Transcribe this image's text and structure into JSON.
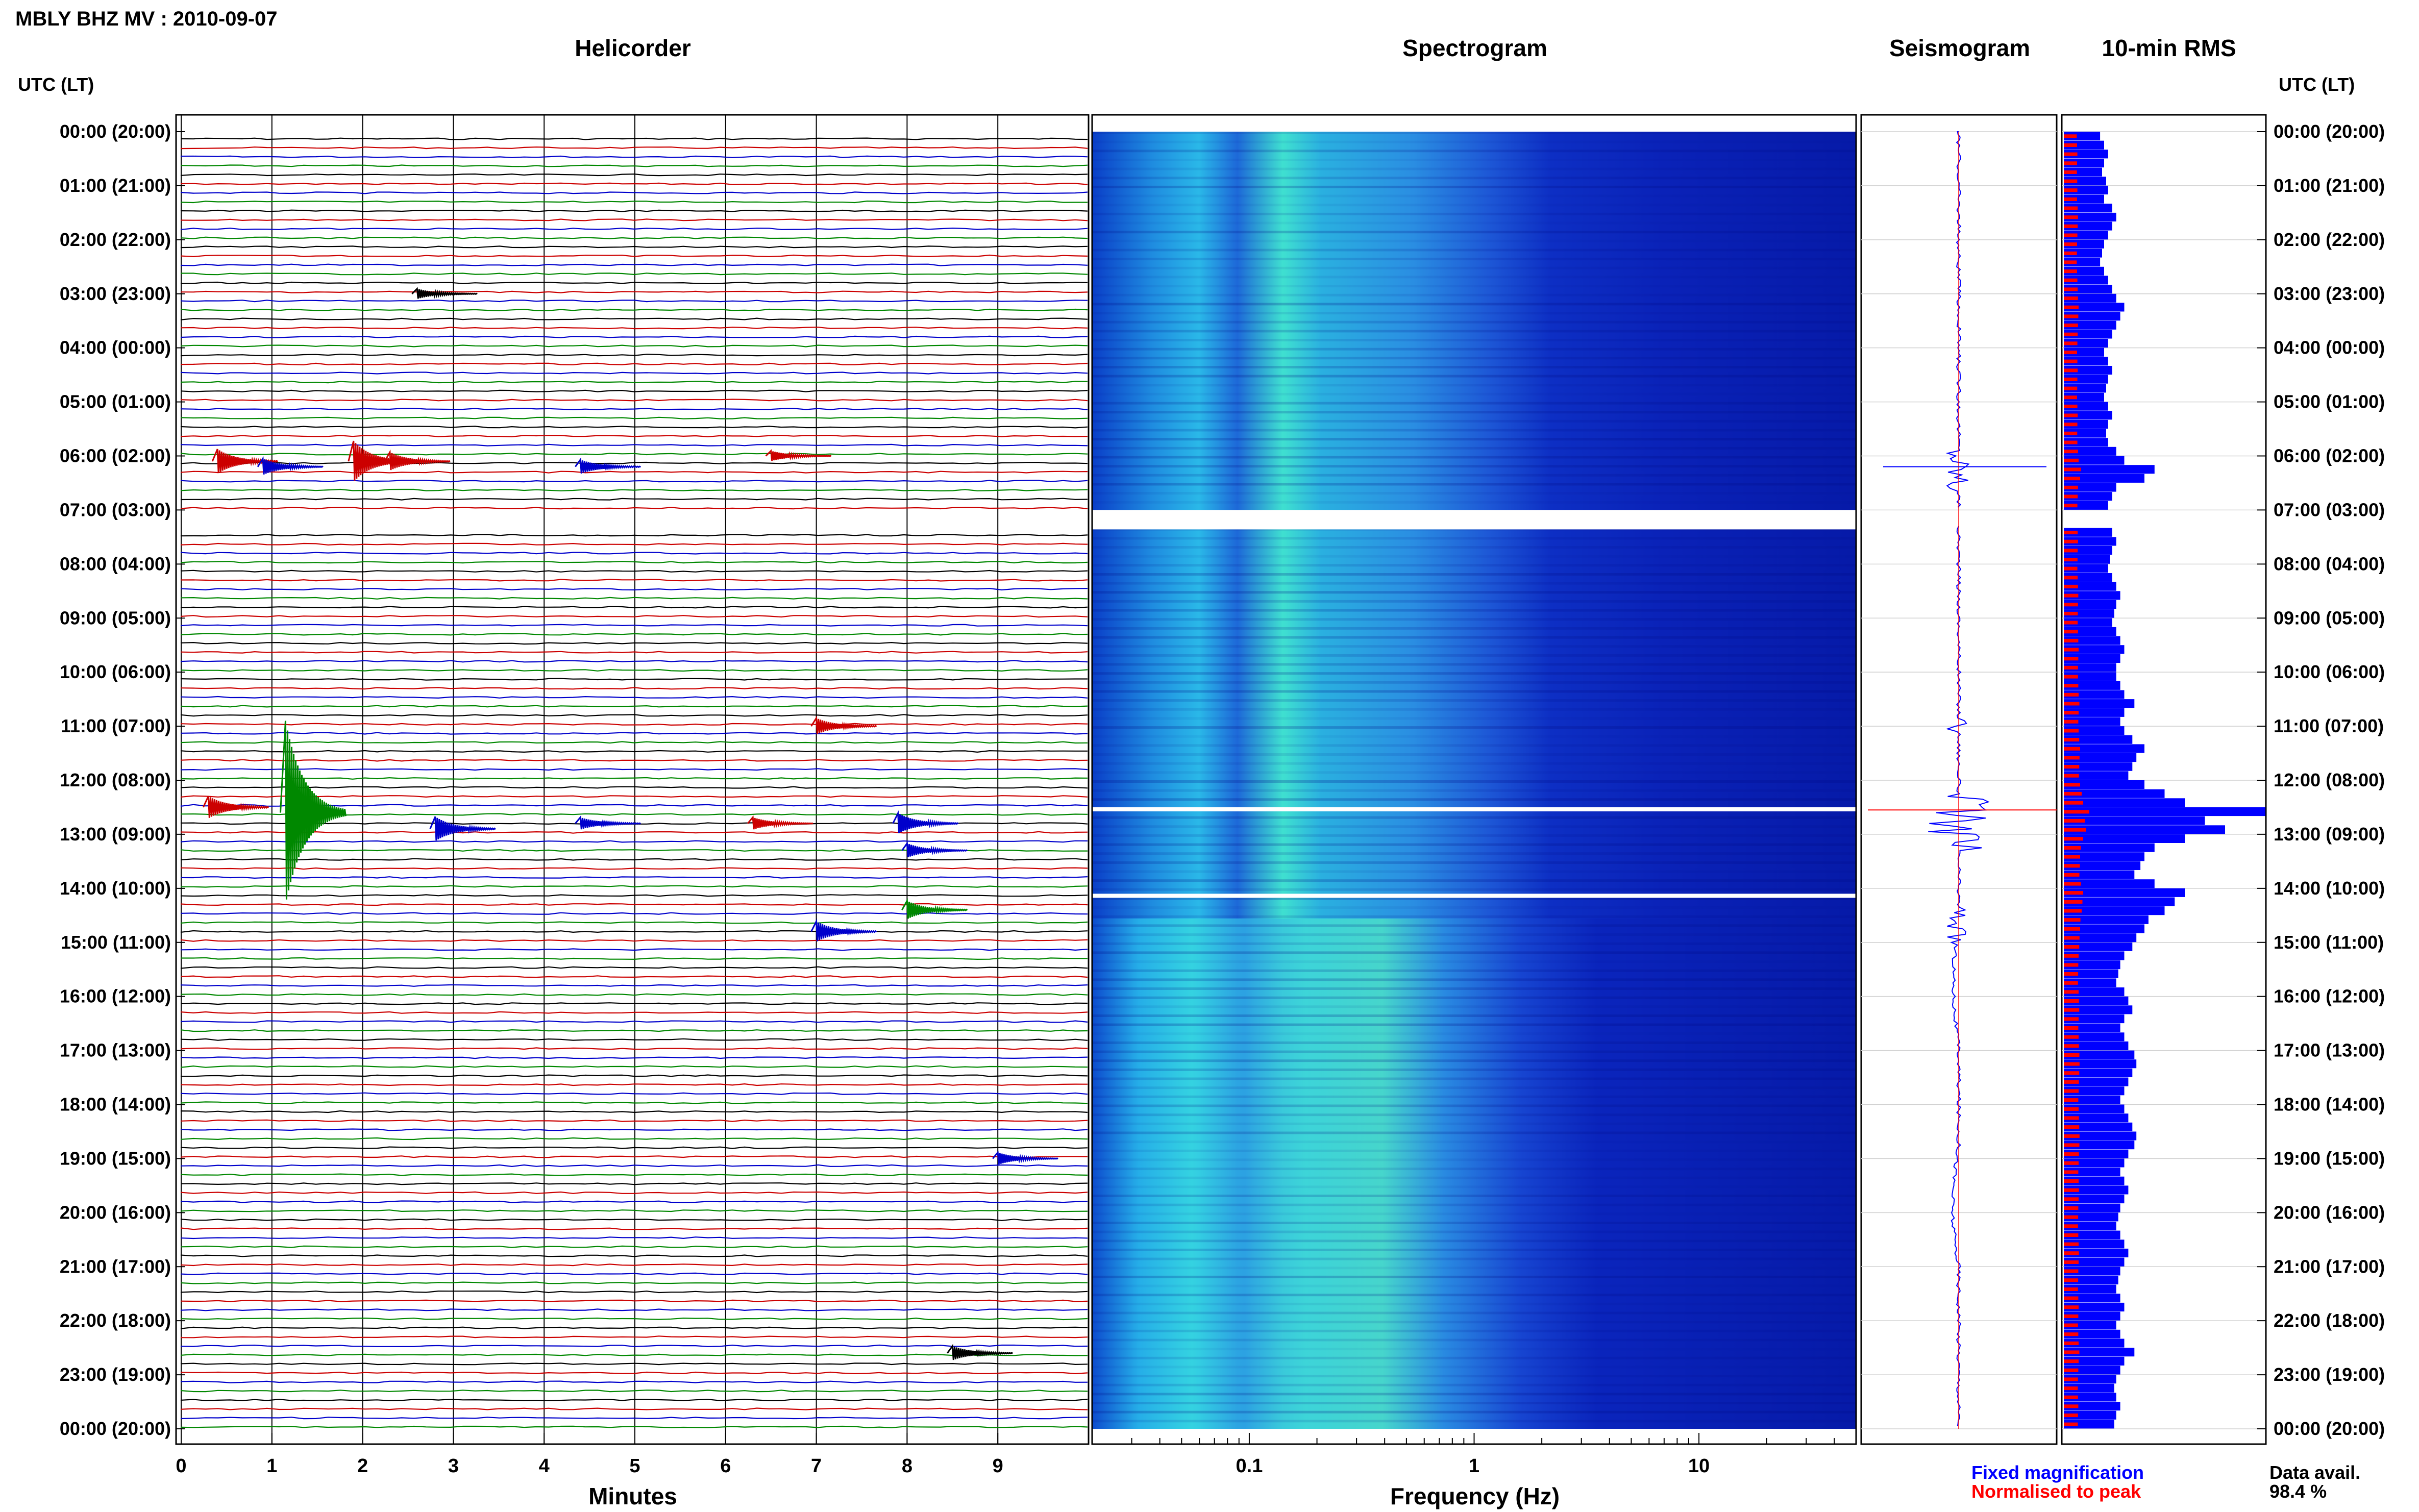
{
  "header": {
    "title": "MBLY BHZ MV : 2010-09-07"
  },
  "panels": {
    "helicorder": "Helicorder",
    "spectrogram": "Spectrogram",
    "seismogram": "Seismogram",
    "rms": "10-min RMS"
  },
  "axes": {
    "left_header": "UTC (LT)",
    "right_header": "UTC (LT)",
    "minutes_label": "Minutes",
    "frequency_label": "Frequency (Hz)"
  },
  "legend": {
    "fixed": "Fixed magnification",
    "normalised": "Normalised to peak",
    "fixed_color": "#0000ff",
    "normalised_color": "#ff0000",
    "avail_label": "Data avail.",
    "avail_value": "98.4 %"
  },
  "chart_data": [
    {
      "type": "line",
      "name": "helicorder",
      "title": "Helicorder",
      "xlabel": "Minutes",
      "ylabel": "UTC (LT)",
      "xlim": [
        0,
        10
      ],
      "x_ticks": [
        "0",
        "1",
        "2",
        "3",
        "4",
        "5",
        "6",
        "7",
        "8",
        "9"
      ],
      "y_ticks_utc": [
        "00:00 (20:00)",
        "01:00 (21:00)",
        "02:00 (22:00)",
        "03:00 (23:00)",
        "04:00 (00:00)",
        "05:00 (01:00)",
        "06:00 (02:00)",
        "07:00 (03:00)",
        "08:00 (04:00)",
        "09:00 (05:00)",
        "10:00 (06:00)",
        "11:00 (07:00)",
        "12:00 (08:00)",
        "13:00 (09:00)",
        "14:00 (10:00)",
        "15:00 (11:00)",
        "16:00 (12:00)",
        "17:00 (13:00)",
        "18:00 (14:00)",
        "19:00 (15:00)",
        "20:00 (16:00)",
        "21:00 (17:00)",
        "22:00 (18:00)",
        "23:00 (19:00)",
        "00:00 (20:00)"
      ],
      "trace_colors": [
        "#000000",
        "#cc0000",
        "#0000cc",
        "#008800"
      ],
      "traces_per_hour": 6,
      "grid": true
    },
    {
      "type": "heatmap",
      "name": "spectrogram",
      "title": "Spectrogram",
      "xlabel": "Frequency (Hz)",
      "x_scale": "log",
      "xlim": [
        0.02,
        50
      ],
      "x_ticks": [
        "0.1",
        "1",
        "10"
      ],
      "gaps_hours": [
        7.0,
        12.5,
        14.1
      ]
    },
    {
      "type": "line",
      "name": "seismogram",
      "title": "Seismogram",
      "series": [
        {
          "name": "Fixed magnification",
          "color": "#0000ff"
        },
        {
          "name": "Normalised to peak",
          "color": "#ff0000"
        }
      ]
    },
    {
      "type": "bar",
      "name": "rms",
      "title": "10-min RMS",
      "note": "relative RMS per 10-minute window (0-1)",
      "values": [
        0.18,
        0.2,
        0.22,
        0.2,
        0.19,
        0.21,
        0.22,
        0.2,
        0.24,
        0.26,
        0.24,
        0.22,
        0.2,
        0.19,
        0.18,
        0.2,
        0.22,
        0.24,
        0.26,
        0.3,
        0.28,
        0.26,
        0.24,
        0.22,
        0.2,
        0.22,
        0.24,
        0.22,
        0.21,
        0.2,
        0.22,
        0.24,
        0.22,
        0.21,
        0.22,
        0.26,
        0.3,
        0.45,
        0.4,
        0.26,
        0.24,
        0.22,
        0.0,
        0.0,
        0.24,
        0.26,
        0.24,
        0.23,
        0.22,
        0.24,
        0.26,
        0.28,
        0.26,
        0.25,
        0.24,
        0.26,
        0.28,
        0.3,
        0.28,
        0.26,
        0.26,
        0.28,
        0.3,
        0.35,
        0.3,
        0.28,
        0.3,
        0.34,
        0.4,
        0.36,
        0.34,
        0.32,
        0.4,
        0.5,
        0.6,
        1.0,
        0.7,
        0.8,
        0.6,
        0.45,
        0.4,
        0.38,
        0.35,
        0.45,
        0.6,
        0.55,
        0.5,
        0.42,
        0.4,
        0.36,
        0.34,
        0.3,
        0.28,
        0.27,
        0.26,
        0.3,
        0.32,
        0.34,
        0.3,
        0.28,
        0.3,
        0.32,
        0.35,
        0.36,
        0.34,
        0.32,
        0.3,
        0.28,
        0.3,
        0.32,
        0.34,
        0.36,
        0.35,
        0.32,
        0.3,
        0.28,
        0.3,
        0.32,
        0.3,
        0.28,
        0.27,
        0.26,
        0.28,
        0.3,
        0.32,
        0.3,
        0.28,
        0.27,
        0.26,
        0.28,
        0.3,
        0.28,
        0.26,
        0.28,
        0.3,
        0.35,
        0.3,
        0.28,
        0.26,
        0.25,
        0.26,
        0.28,
        0.26,
        0.25
      ]
    }
  ]
}
